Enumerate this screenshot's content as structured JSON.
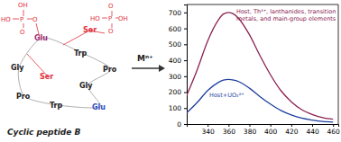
{
  "chart_data": {
    "type": "line",
    "x": [
      320,
      330,
      340,
      350,
      355,
      360,
      365,
      370,
      380,
      390,
      400,
      410,
      420,
      430,
      440,
      450,
      460
    ],
    "series": [
      {
        "name": "Host, Th⁴⁺, lanthanides, transition metals, and main-group elements",
        "color": "#8b2252",
        "values": [
          180,
          340,
          520,
          650,
          690,
          700,
          690,
          660,
          560,
          430,
          310,
          210,
          140,
          90,
          60,
          40,
          30
        ]
      },
      {
        "name": "Host+UO₂²⁺",
        "color": "#1f3f9f",
        "values": [
          70,
          135,
          210,
          260,
          275,
          280,
          275,
          265,
          225,
          172,
          125,
          85,
          57,
          37,
          25,
          16,
          12
        ]
      }
    ],
    "xlim": [
      320,
      465
    ],
    "xticks": [
      340,
      360,
      380,
      400,
      420,
      440,
      460
    ],
    "ylim": [
      0,
      750
    ],
    "yticks": [
      0,
      100,
      200,
      300,
      400,
      500,
      600,
      700
    ],
    "grid": false
  },
  "diagram": {
    "caption": "Cyclic peptide B",
    "reagent": "Mⁿ⁺",
    "residues": [
      {
        "label": "Glu",
        "color": "#a0307a"
      },
      {
        "label": "Ser",
        "color": "#e0303a"
      },
      {
        "label": "Trp",
        "color": "#222222"
      },
      {
        "label": "Pro",
        "color": "#222222"
      },
      {
        "label": "Gly",
        "color": "#222222"
      },
      {
        "label": "Glu",
        "color": "#3050c0"
      },
      {
        "label": "Trp",
        "color": "#222222"
      },
      {
        "label": "Pro",
        "color": "#222222"
      },
      {
        "label": "Gly",
        "color": "#222222"
      },
      {
        "label": "Ser",
        "color": "#e0303a"
      }
    ],
    "phosphates": [
      [
        "OH",
        "HO",
        "P",
        "O",
        "O"
      ],
      [
        "O",
        "HO",
        "P",
        "OH",
        "O"
      ]
    ]
  }
}
